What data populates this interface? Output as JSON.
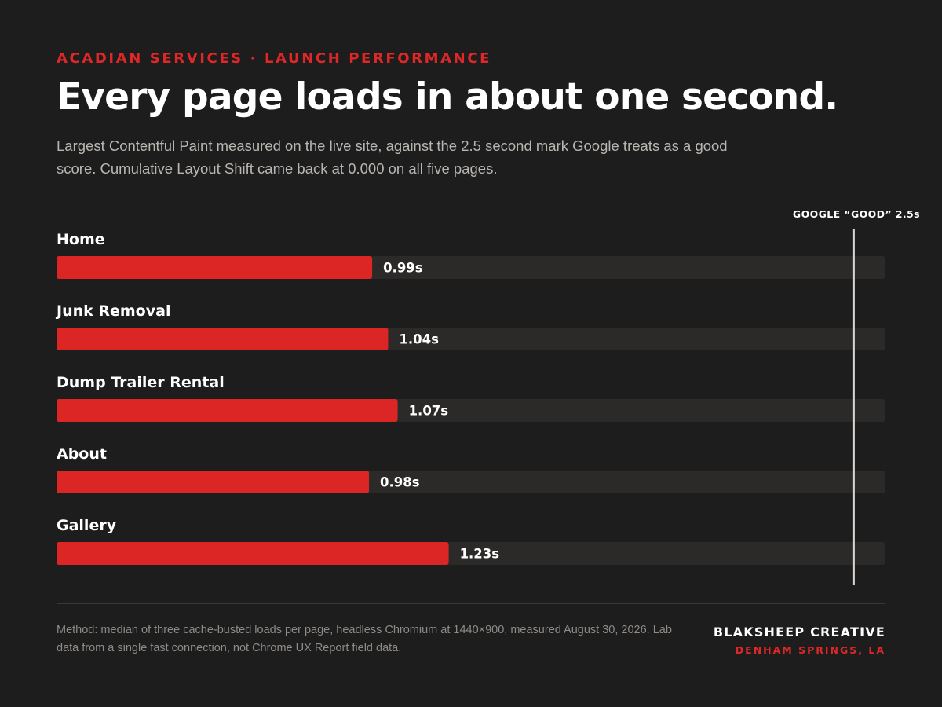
{
  "header": {
    "eyebrow": "ACADIAN SERVICES · LAUNCH PERFORMANCE",
    "title": "Every page loads in about one second.",
    "subtitle": "Largest Contentful Paint measured on the live site, against the 2.5 second mark Google treats as a good score. Cumulative Layout Shift came back at 0.000 on all five pages."
  },
  "chart_data": {
    "type": "bar",
    "orientation": "horizontal",
    "categories": [
      "Home",
      "Junk Removal",
      "Dump Trailer Rental",
      "About",
      "Gallery"
    ],
    "values": [
      0.99,
      1.04,
      1.07,
      0.98,
      1.23
    ],
    "value_labels": [
      "0.99s",
      "1.04s",
      "1.07s",
      "0.98s",
      "1.23s"
    ],
    "unit": "s",
    "xlim": [
      0,
      2.6
    ],
    "reference_line": {
      "value": 2.5,
      "label": "GOOGLE “GOOD” 2.5s"
    },
    "grid": false,
    "legend": "none",
    "colors": {
      "bar": "#dc2626",
      "track": "#2c2a28",
      "reference": "#d8d5d1",
      "label": "#ffffff"
    }
  },
  "footer": {
    "method_note": "Method: median of three cache-busted loads per page, headless Chromium at 1440×900, measured August 30, 2026. Lab data from a single fast connection, not Chrome UX Report field data.",
    "brand": "BLAKSHEEP CREATIVE",
    "location": "DENHAM SPRINGS, LA"
  }
}
